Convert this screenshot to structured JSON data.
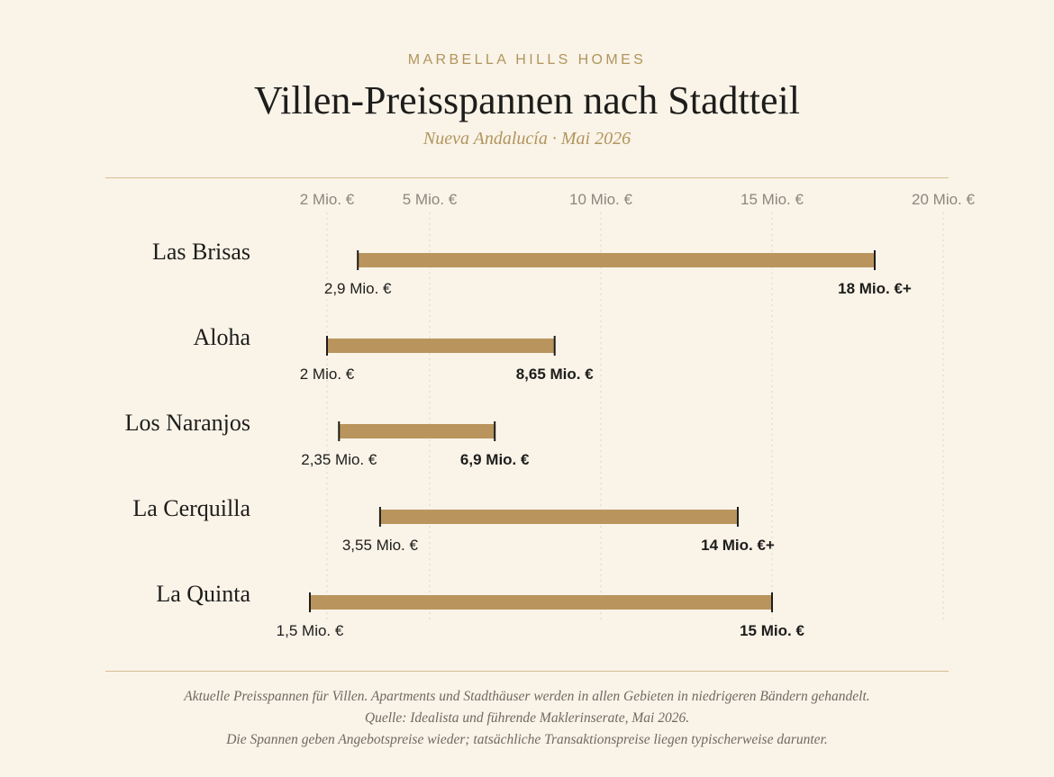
{
  "header": {
    "brand": "MARBELLA HILLS HOMES",
    "title": "Villen-Preisspannen nach Stadtteil",
    "subtitle": "Nueva Andalucía · Mai 2026"
  },
  "colors": {
    "background": "#f9f3e8",
    "bar": "#b9955d",
    "accent": "#b2955c",
    "rule": "#d9bf93",
    "text": "#1d1d1b"
  },
  "chart_data": {
    "type": "bar",
    "orientation": "horizontal-range",
    "unit": "Mio. €",
    "xlim": [
      0,
      20
    ],
    "x_ticks": [
      {
        "value": 2,
        "label": "2 Mio. €"
      },
      {
        "value": 5,
        "label": "5 Mio. €"
      },
      {
        "value": 10,
        "label": "10 Mio. €"
      },
      {
        "value": 15,
        "label": "15 Mio. €"
      },
      {
        "value": 20,
        "label": "20 Mio. €"
      }
    ],
    "grid": true,
    "categories": [
      "Las Brisas",
      "Aloha",
      "Los Naranjos",
      "La Cerquilla",
      "La Quinta"
    ],
    "ranges": [
      {
        "name": "Las Brisas",
        "min": 2.9,
        "max": 18,
        "min_label": "2,9 Mio. €",
        "max_label": "18 Mio. €+"
      },
      {
        "name": "Aloha",
        "min": 2,
        "max": 8.65,
        "min_label": "2 Mio. €",
        "max_label": "8,65 Mio. €"
      },
      {
        "name": "Los Naranjos",
        "min": 2.35,
        "max": 6.9,
        "min_label": "2,35 Mio. €",
        "max_label": "6,9 Mio. €"
      },
      {
        "name": "La Cerquilla",
        "min": 3.55,
        "max": 14,
        "min_label": "3,55 Mio. €",
        "max_label": "14 Mio. €+"
      },
      {
        "name": "La Quinta",
        "min": 1.5,
        "max": 15,
        "min_label": "1,5 Mio. €",
        "max_label": "15 Mio. €"
      }
    ]
  },
  "footer": {
    "line1": "Aktuelle Preisspannen für Villen. Apartments und Stadthäuser werden in allen Gebieten in niedrigeren Bändern gehandelt.",
    "line2": "Quelle: Idealista und führende Maklerinserate, Mai 2026.",
    "line3": "Die Spannen geben Angebotspreise wieder; tatsächliche Transaktionspreise liegen typischerweise darunter."
  }
}
